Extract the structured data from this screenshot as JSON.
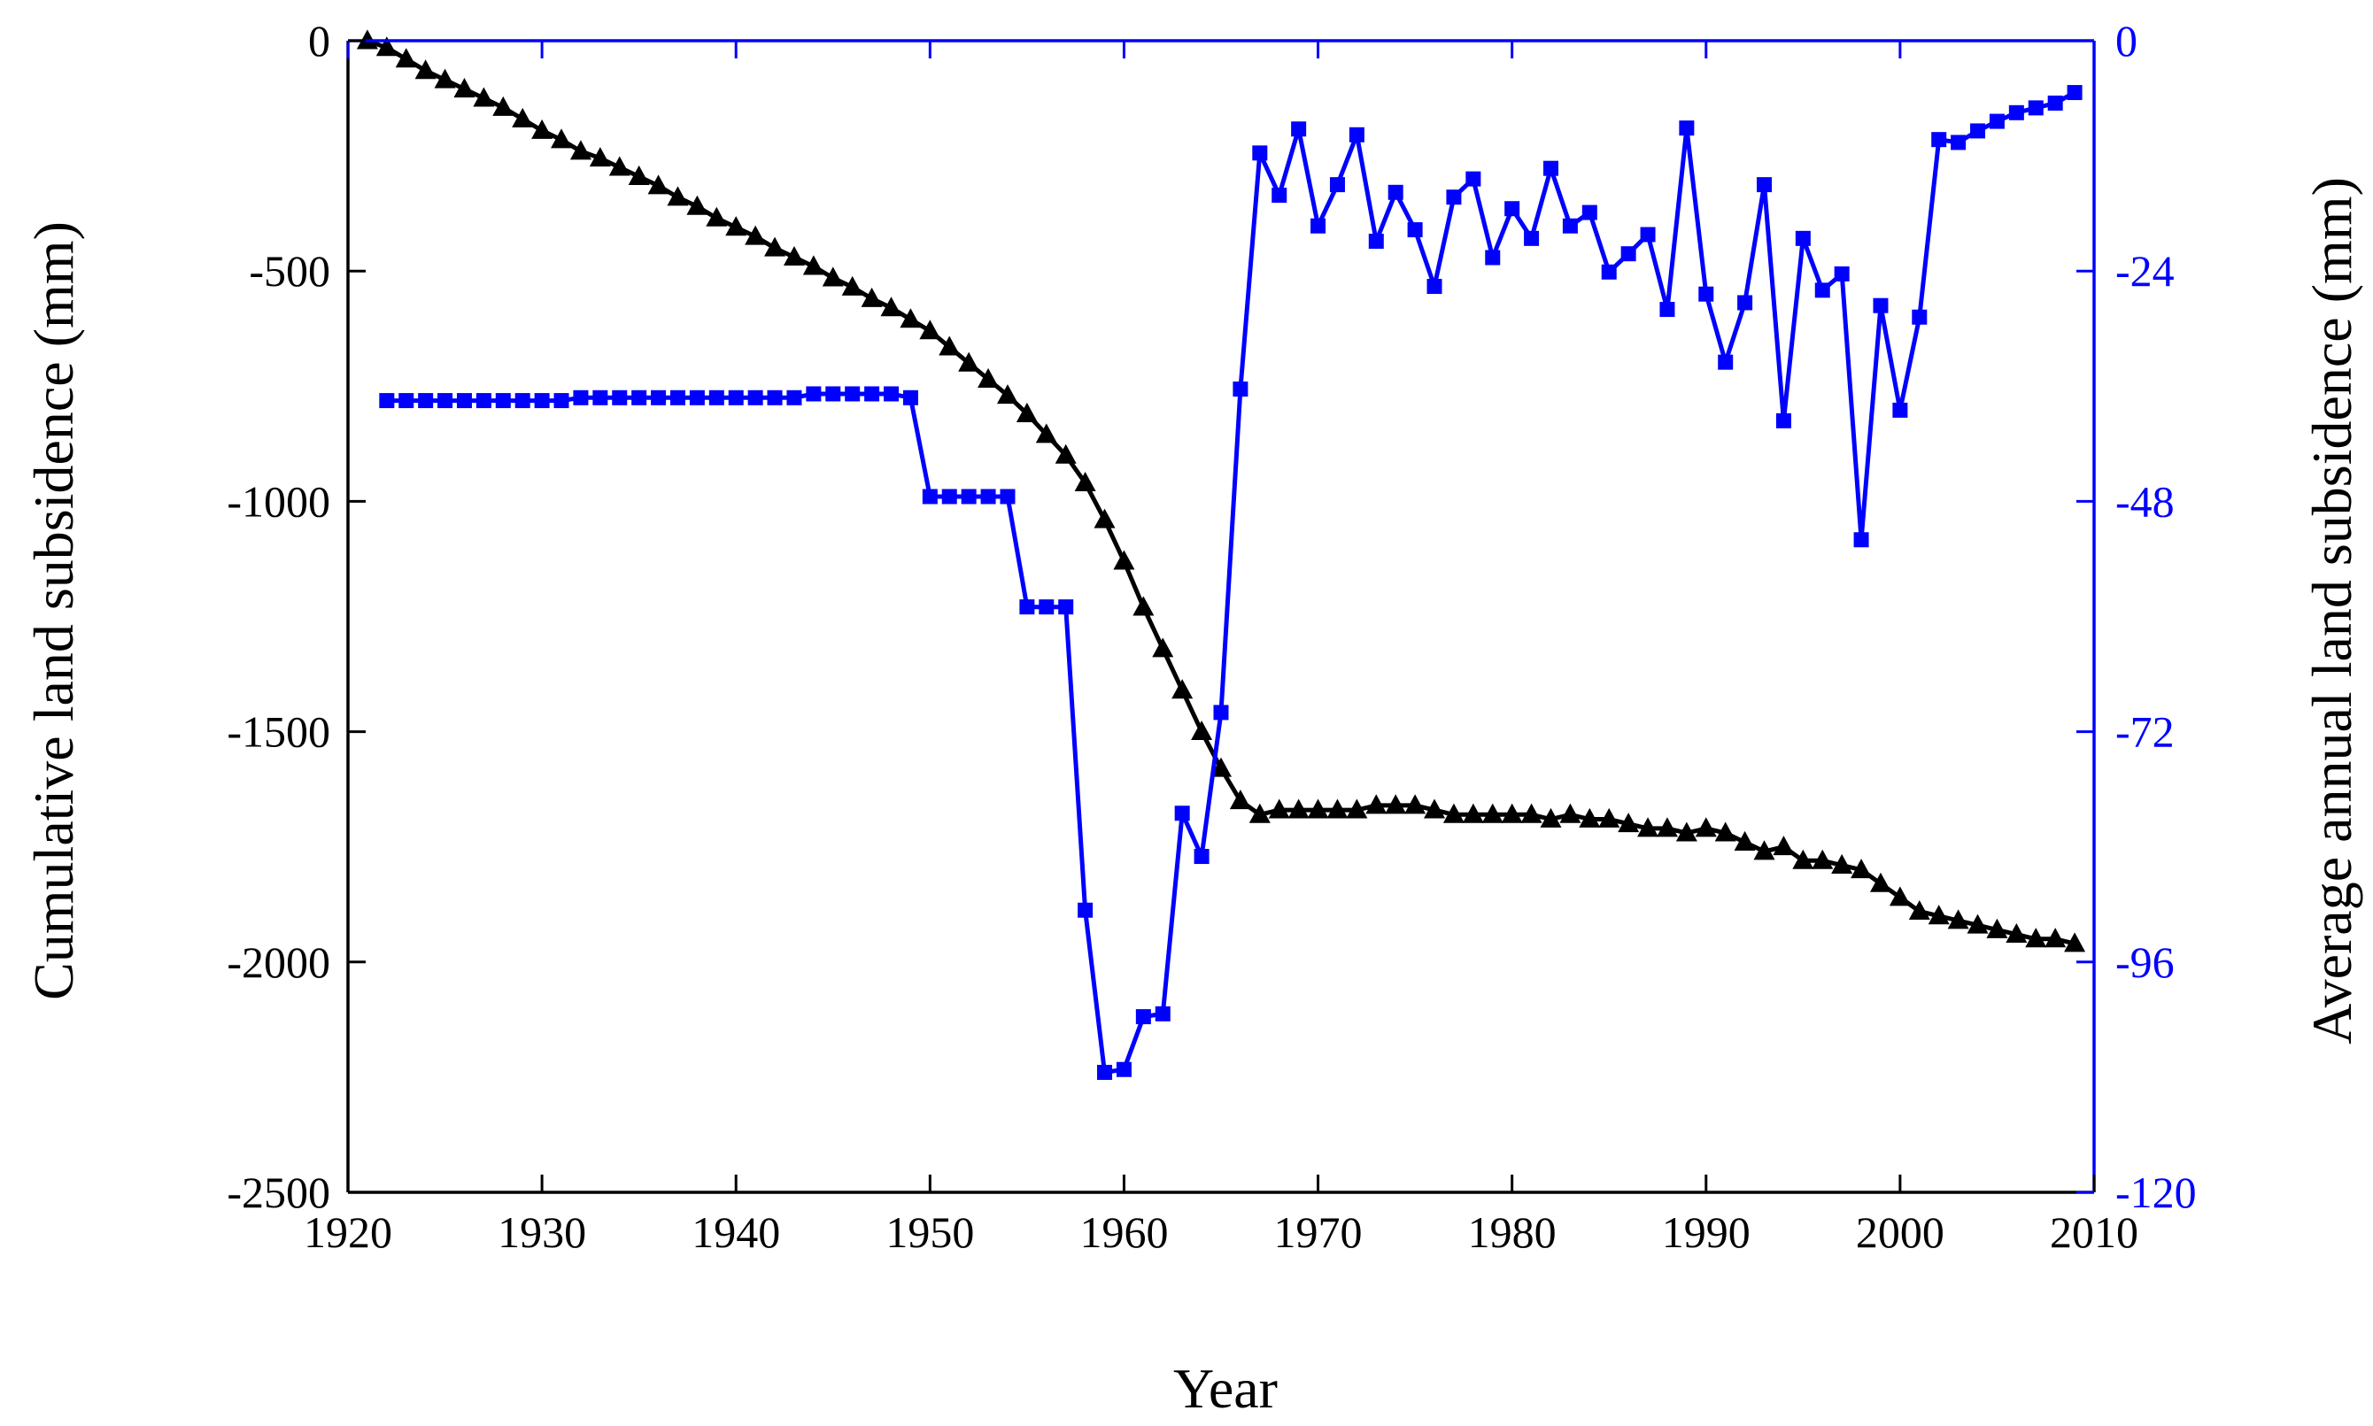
{
  "chart_data": {
    "type": "line",
    "xlabel": "Year",
    "ylabel_left": "Cumulative land subsidence (mm)",
    "ylabel_right": "Average annual land subsidence (mm)",
    "xlim": [
      1920,
      2010
    ],
    "ylim_left": [
      -2500,
      0
    ],
    "ylim_right": [
      -120,
      0
    ],
    "x_ticks": [
      1920,
      1930,
      1940,
      1950,
      1960,
      1970,
      1980,
      1990,
      2000,
      2010
    ],
    "y_ticks_left": [
      0,
      -500,
      -1000,
      -1500,
      -2000,
      -2500
    ],
    "y_ticks_right": [
      0,
      -24,
      -48,
      -72,
      -96,
      -120
    ],
    "grid": false,
    "series": [
      {
        "axis": "left",
        "color": "#000000",
        "marker": "triangle",
        "x": [
          1921,
          1922,
          1923,
          1924,
          1925,
          1926,
          1927,
          1928,
          1929,
          1930,
          1931,
          1932,
          1933,
          1934,
          1935,
          1936,
          1937,
          1938,
          1939,
          1940,
          1941,
          1942,
          1943,
          1944,
          1945,
          1946,
          1947,
          1948,
          1949,
          1950,
          1951,
          1952,
          1953,
          1954,
          1955,
          1956,
          1957,
          1958,
          1959,
          1960,
          1961,
          1962,
          1963,
          1964,
          1965,
          1966,
          1967,
          1968,
          1969,
          1970,
          1971,
          1972,
          1973,
          1974,
          1975,
          1976,
          1977,
          1978,
          1979,
          1980,
          1981,
          1982,
          1983,
          1984,
          1985,
          1986,
          1987,
          1988,
          1989,
          1990,
          1991,
          1992,
          1993,
          1994,
          1995,
          1996,
          1997,
          1998,
          1999,
          2000,
          2001,
          2002,
          2003,
          2004,
          2005,
          2006,
          2007,
          2008,
          2009
        ],
        "values": [
          0,
          -15,
          -40,
          -65,
          -85,
          -105,
          -125,
          -145,
          -170,
          -195,
          -215,
          -240,
          -255,
          -275,
          -295,
          -315,
          -340,
          -360,
          -385,
          -405,
          -425,
          -450,
          -470,
          -490,
          -515,
          -535,
          -560,
          -580,
          -605,
          -630,
          -665,
          -700,
          -735,
          -770,
          -810,
          -855,
          -900,
          -960,
          -1040,
          -1130,
          -1230,
          -1320,
          -1410,
          -1500,
          -1580,
          -1650,
          -1680,
          -1670,
          -1670,
          -1670,
          -1670,
          -1670,
          -1660,
          -1660,
          -1660,
          -1670,
          -1680,
          -1680,
          -1680,
          -1680,
          -1680,
          -1690,
          -1680,
          -1690,
          -1690,
          -1700,
          -1710,
          -1710,
          -1720,
          -1710,
          -1720,
          -1740,
          -1760,
          -1750,
          -1780,
          -1780,
          -1790,
          -1800,
          -1830,
          -1860,
          -1890,
          -1900,
          -1910,
          -1920,
          -1930,
          -1940,
          -1950,
          -1950,
          -1960
        ]
      },
      {
        "axis": "right",
        "color": "#0000ff",
        "marker": "square",
        "x": [
          1922,
          1923,
          1924,
          1925,
          1926,
          1927,
          1928,
          1929,
          1930,
          1931,
          1932,
          1933,
          1934,
          1935,
          1936,
          1937,
          1938,
          1939,
          1940,
          1941,
          1942,
          1943,
          1944,
          1945,
          1946,
          1947,
          1948,
          1949,
          1950,
          1951,
          1952,
          1953,
          1954,
          1955,
          1956,
          1957,
          1958,
          1959,
          1960,
          1961,
          1962,
          1963,
          1964,
          1965,
          1966,
          1967,
          1968,
          1969,
          1970,
          1971,
          1972,
          1973,
          1974,
          1975,
          1976,
          1977,
          1978,
          1979,
          1980,
          1981,
          1982,
          1983,
          1984,
          1985,
          1986,
          1987,
          1988,
          1989,
          1990,
          1991,
          1992,
          1993,
          1994,
          1995,
          1996,
          1997,
          1998,
          1999,
          2000,
          2001,
          2002,
          2003,
          2004,
          2005,
          2006,
          2007,
          2008,
          2009
        ],
        "values": [
          -37.5,
          -37.5,
          -37.5,
          -37.5,
          -37.5,
          -37.5,
          -37.5,
          -37.5,
          -37.5,
          -37.5,
          -37.2,
          -37.2,
          -37.2,
          -37.2,
          -37.2,
          -37.2,
          -37.2,
          -37.2,
          -37.2,
          -37.2,
          -37.2,
          -37.2,
          -36.8,
          -36.8,
          -36.8,
          -36.8,
          -36.8,
          -37.2,
          -47.5,
          -47.5,
          -47.5,
          -47.5,
          -47.5,
          -59.0,
          -59.0,
          -59.0,
          -90.6,
          -107.5,
          -107.2,
          -101.7,
          -101.4,
          -80.5,
          -85.0,
          -70.0,
          -36.3,
          -11.7,
          -16.1,
          -9.2,
          -19.3,
          -15.0,
          -9.8,
          -20.9,
          -15.8,
          -19.7,
          -25.6,
          -16.3,
          -14.4,
          -22.6,
          -17.5,
          -20.6,
          -13.3,
          -19.3,
          -17.9,
          -24.1,
          -22.2,
          -20.2,
          -28.0,
          -9.1,
          -26.4,
          -33.5,
          -27.3,
          -15.0,
          -39.6,
          -20.6,
          -26.0,
          -24.3,
          -52.0,
          -27.6,
          -38.5,
          -28.8,
          -10.3,
          -10.6,
          -9.4,
          -8.4,
          -7.5,
          -7.0,
          -6.5,
          -5.4
        ]
      }
    ]
  }
}
